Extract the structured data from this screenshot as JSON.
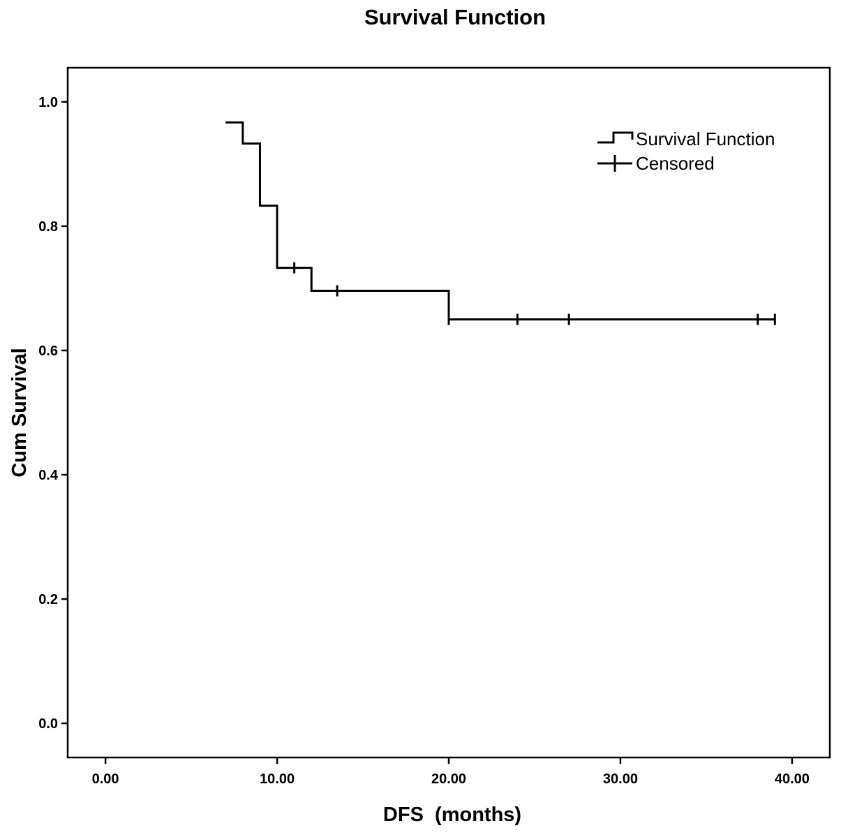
{
  "chart_data": {
    "type": "line",
    "title": "Survival Function",
    "xlabel": "DFS  (months)",
    "ylabel": "Cum Survival",
    "xlim": [
      -2.2,
      42.2
    ],
    "ylim": [
      -0.055,
      1.055
    ],
    "x_ticks": [
      0,
      10,
      20,
      30,
      40
    ],
    "x_tick_labels": [
      "0.00",
      "10.00",
      "20.00",
      "30.00",
      "40.00"
    ],
    "y_ticks": [
      0,
      0.2,
      0.4,
      0.6,
      0.8,
      1.0
    ],
    "y_tick_labels": [
      "0.0",
      "0.2",
      "0.4",
      "0.6",
      "0.8",
      "1.0"
    ],
    "grid": false,
    "legend_position": "top-right",
    "color": "#000000",
    "series": [
      {
        "name": "Survival Function",
        "style": "step",
        "x": [
          7,
          8,
          9,
          10,
          12,
          20,
          39
        ],
        "y": [
          0.967,
          0.933,
          0.833,
          0.733,
          0.696,
          0.65,
          0.65
        ]
      },
      {
        "name": "Censored",
        "style": "plus-marker",
        "x": [
          11,
          13.5,
          20,
          24,
          27,
          38,
          39
        ],
        "y": [
          0.733,
          0.696,
          0.65,
          0.65,
          0.65,
          0.65,
          0.65
        ]
      }
    ]
  }
}
